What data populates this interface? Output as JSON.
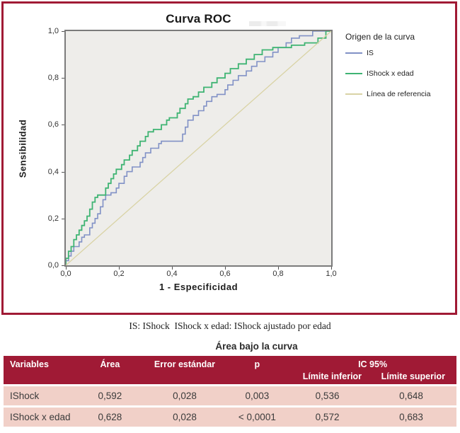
{
  "figure": {
    "caption": "IS: IShock  IShock x edad: IShock ajustado por edad"
  },
  "chart_data": {
    "type": "line",
    "title": "Curva ROC",
    "xlabel": "1 - Especificidad",
    "ylabel": "Sensibilidad",
    "xlim": [
      0,
      1
    ],
    "ylim": [
      0,
      1
    ],
    "x_ticks": [
      "0,0",
      "0,2",
      "0,4",
      "0,6",
      "0,8",
      "1,0"
    ],
    "y_ticks": [
      "0,0",
      "0,2",
      "0,4",
      "0,6",
      "0,8",
      "1,0"
    ],
    "grid": false,
    "legend_title": "Origen de la curva",
    "legend_position": "right",
    "plot_bg": "#eeedea",
    "series": [
      {
        "name": "IS",
        "color": "#8191c6",
        "width": 1.6,
        "points": [
          [
            0,
            0
          ],
          [
            0,
            0.02
          ],
          [
            0.01,
            0.02
          ],
          [
            0.01,
            0.04
          ],
          [
            0.02,
            0.04
          ],
          [
            0.02,
            0.06
          ],
          [
            0.03,
            0.06
          ],
          [
            0.03,
            0.08
          ],
          [
            0.05,
            0.08
          ],
          [
            0.05,
            0.1
          ],
          [
            0.06,
            0.1
          ],
          [
            0.06,
            0.12
          ],
          [
            0.07,
            0.12
          ],
          [
            0.07,
            0.13
          ],
          [
            0.09,
            0.13
          ],
          [
            0.09,
            0.16
          ],
          [
            0.1,
            0.16
          ],
          [
            0.1,
            0.18
          ],
          [
            0.11,
            0.18
          ],
          [
            0.11,
            0.2
          ],
          [
            0.12,
            0.2
          ],
          [
            0.12,
            0.22
          ],
          [
            0.13,
            0.22
          ],
          [
            0.13,
            0.25
          ],
          [
            0.14,
            0.25
          ],
          [
            0.14,
            0.28
          ],
          [
            0.15,
            0.28
          ],
          [
            0.15,
            0.3
          ],
          [
            0.17,
            0.3
          ],
          [
            0.17,
            0.31
          ],
          [
            0.19,
            0.31
          ],
          [
            0.19,
            0.33
          ],
          [
            0.2,
            0.33
          ],
          [
            0.2,
            0.35
          ],
          [
            0.22,
            0.35
          ],
          [
            0.22,
            0.38
          ],
          [
            0.23,
            0.38
          ],
          [
            0.23,
            0.4
          ],
          [
            0.25,
            0.4
          ],
          [
            0.25,
            0.42
          ],
          [
            0.28,
            0.42
          ],
          [
            0.28,
            0.44
          ],
          [
            0.29,
            0.44
          ],
          [
            0.29,
            0.46
          ],
          [
            0.3,
            0.46
          ],
          [
            0.3,
            0.48
          ],
          [
            0.32,
            0.48
          ],
          [
            0.32,
            0.5
          ],
          [
            0.35,
            0.5
          ],
          [
            0.35,
            0.52
          ],
          [
            0.36,
            0.52
          ],
          [
            0.36,
            0.53
          ],
          [
            0.44,
            0.53
          ],
          [
            0.44,
            0.56
          ],
          [
            0.45,
            0.56
          ],
          [
            0.45,
            0.59
          ],
          [
            0.46,
            0.59
          ],
          [
            0.46,
            0.62
          ],
          [
            0.48,
            0.62
          ],
          [
            0.48,
            0.64
          ],
          [
            0.5,
            0.64
          ],
          [
            0.5,
            0.66
          ],
          [
            0.52,
            0.66
          ],
          [
            0.52,
            0.68
          ],
          [
            0.53,
            0.68
          ],
          [
            0.53,
            0.7
          ],
          [
            0.55,
            0.7
          ],
          [
            0.55,
            0.72
          ],
          [
            0.57,
            0.72
          ],
          [
            0.57,
            0.73
          ],
          [
            0.6,
            0.73
          ],
          [
            0.6,
            0.75
          ],
          [
            0.61,
            0.75
          ],
          [
            0.61,
            0.77
          ],
          [
            0.63,
            0.77
          ],
          [
            0.63,
            0.79
          ],
          [
            0.65,
            0.79
          ],
          [
            0.65,
            0.81
          ],
          [
            0.68,
            0.81
          ],
          [
            0.68,
            0.83
          ],
          [
            0.7,
            0.83
          ],
          [
            0.7,
            0.85
          ],
          [
            0.72,
            0.85
          ],
          [
            0.72,
            0.87
          ],
          [
            0.75,
            0.87
          ],
          [
            0.75,
            0.89
          ],
          [
            0.78,
            0.89
          ],
          [
            0.78,
            0.91
          ],
          [
            0.8,
            0.91
          ],
          [
            0.8,
            0.93
          ],
          [
            0.83,
            0.93
          ],
          [
            0.83,
            0.95
          ],
          [
            0.85,
            0.95
          ],
          [
            0.85,
            0.97
          ],
          [
            0.88,
            0.97
          ],
          [
            0.88,
            0.98
          ],
          [
            0.93,
            0.98
          ],
          [
            0.93,
            1
          ],
          [
            1,
            1
          ]
        ]
      },
      {
        "name": "IShock x edad",
        "color": "#3fb473",
        "width": 1.8,
        "points": [
          [
            0,
            0
          ],
          [
            0,
            0.03
          ],
          [
            0.01,
            0.03
          ],
          [
            0.01,
            0.06
          ],
          [
            0.02,
            0.06
          ],
          [
            0.02,
            0.08
          ],
          [
            0.03,
            0.08
          ],
          [
            0.03,
            0.11
          ],
          [
            0.04,
            0.11
          ],
          [
            0.04,
            0.13
          ],
          [
            0.05,
            0.13
          ],
          [
            0.05,
            0.15
          ],
          [
            0.06,
            0.15
          ],
          [
            0.06,
            0.17
          ],
          [
            0.07,
            0.17
          ],
          [
            0.07,
            0.19
          ],
          [
            0.08,
            0.19
          ],
          [
            0.08,
            0.21
          ],
          [
            0.09,
            0.21
          ],
          [
            0.09,
            0.24
          ],
          [
            0.1,
            0.24
          ],
          [
            0.1,
            0.27
          ],
          [
            0.11,
            0.27
          ],
          [
            0.11,
            0.29
          ],
          [
            0.12,
            0.29
          ],
          [
            0.12,
            0.3
          ],
          [
            0.15,
            0.3
          ],
          [
            0.15,
            0.33
          ],
          [
            0.16,
            0.33
          ],
          [
            0.16,
            0.35
          ],
          [
            0.17,
            0.35
          ],
          [
            0.17,
            0.37
          ],
          [
            0.18,
            0.37
          ],
          [
            0.18,
            0.39
          ],
          [
            0.19,
            0.39
          ],
          [
            0.19,
            0.41
          ],
          [
            0.21,
            0.41
          ],
          [
            0.21,
            0.43
          ],
          [
            0.22,
            0.43
          ],
          [
            0.22,
            0.45
          ],
          [
            0.24,
            0.45
          ],
          [
            0.24,
            0.47
          ],
          [
            0.25,
            0.47
          ],
          [
            0.25,
            0.49
          ],
          [
            0.27,
            0.49
          ],
          [
            0.27,
            0.51
          ],
          [
            0.28,
            0.51
          ],
          [
            0.28,
            0.53
          ],
          [
            0.3,
            0.53
          ],
          [
            0.3,
            0.55
          ],
          [
            0.31,
            0.55
          ],
          [
            0.31,
            0.57
          ],
          [
            0.33,
            0.57
          ],
          [
            0.33,
            0.58
          ],
          [
            0.36,
            0.58
          ],
          [
            0.36,
            0.6
          ],
          [
            0.38,
            0.6
          ],
          [
            0.38,
            0.62
          ],
          [
            0.39,
            0.62
          ],
          [
            0.39,
            0.63
          ],
          [
            0.42,
            0.63
          ],
          [
            0.42,
            0.65
          ],
          [
            0.43,
            0.65
          ],
          [
            0.43,
            0.67
          ],
          [
            0.45,
            0.67
          ],
          [
            0.45,
            0.69
          ],
          [
            0.46,
            0.69
          ],
          [
            0.46,
            0.71
          ],
          [
            0.48,
            0.71
          ],
          [
            0.48,
            0.72
          ],
          [
            0.5,
            0.72
          ],
          [
            0.5,
            0.74
          ],
          [
            0.52,
            0.74
          ],
          [
            0.52,
            0.76
          ],
          [
            0.55,
            0.76
          ],
          [
            0.55,
            0.78
          ],
          [
            0.57,
            0.78
          ],
          [
            0.57,
            0.8
          ],
          [
            0.6,
            0.8
          ],
          [
            0.6,
            0.82
          ],
          [
            0.62,
            0.82
          ],
          [
            0.62,
            0.84
          ],
          [
            0.65,
            0.84
          ],
          [
            0.65,
            0.86
          ],
          [
            0.68,
            0.86
          ],
          [
            0.68,
            0.88
          ],
          [
            0.71,
            0.88
          ],
          [
            0.71,
            0.9
          ],
          [
            0.74,
            0.9
          ],
          [
            0.74,
            0.92
          ],
          [
            0.78,
            0.92
          ],
          [
            0.78,
            0.93
          ],
          [
            0.85,
            0.93
          ],
          [
            0.85,
            0.94
          ],
          [
            0.9,
            0.94
          ],
          [
            0.9,
            0.95
          ],
          [
            0.95,
            0.95
          ],
          [
            0.95,
            0.97
          ],
          [
            0.98,
            0.97
          ],
          [
            0.98,
            1
          ],
          [
            1,
            1
          ]
        ]
      },
      {
        "name": "Línea de referencia",
        "color": "#d9d3a5",
        "width": 1.3,
        "points": [
          [
            0,
            0
          ],
          [
            1,
            1
          ]
        ]
      }
    ]
  },
  "table": {
    "title": "Área bajo la curva",
    "headers": {
      "variables": "Variables",
      "area": "Área",
      "se": "Error estándar",
      "p": "p",
      "ic": "IC 95%",
      "lower": "Límite inferior",
      "upper": "Límite superior"
    },
    "rows": [
      [
        "IShock",
        "0,592",
        "0,028",
        "0,003",
        "0,536",
        "0,648"
      ],
      [
        "IShock x edad",
        "0,628",
        "0,028",
        "< 0,0001",
        "0,572",
        "0,683"
      ]
    ]
  },
  "colors": {
    "accent_red": "#a01a35",
    "row_pink": "#f1d0c8",
    "plot_background": "#eeedea",
    "plot_border": "#7b7b7b",
    "curve_is": "#8191c6",
    "curve_ishock_edad": "#3fb473",
    "reference_line": "#d9d3a5"
  }
}
